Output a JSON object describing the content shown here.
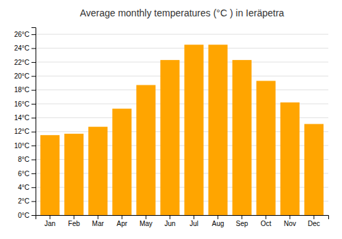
{
  "chart_data": {
    "type": "bar",
    "title": "Average monthly temperatures (°C ) in Ieräpetra",
    "categories": [
      "Jan",
      "Feb",
      "Mar",
      "Apr",
      "May",
      "Jun",
      "Jul",
      "Aug",
      "Sep",
      "Oct",
      "Nov",
      "Dec"
    ],
    "values": [
      11.5,
      11.7,
      12.7,
      15.3,
      18.7,
      22.3,
      24.5,
      24.5,
      22.3,
      19.3,
      16.2,
      13.1
    ],
    "color": "#FFA500",
    "ylim": [
      0,
      27
    ],
    "yticks": [
      {
        "value": 0,
        "label": "0°C"
      },
      {
        "value": 2,
        "label": "2°C"
      },
      {
        "value": 4,
        "label": "4°C"
      },
      {
        "value": 6,
        "label": "6°C"
      },
      {
        "value": 8,
        "label": "8°C"
      },
      {
        "value": 10,
        "label": "10°C"
      },
      {
        "value": 12,
        "label": "12°C"
      },
      {
        "value": 14,
        "label": "14°C"
      },
      {
        "value": 16,
        "label": "16°C"
      },
      {
        "value": 18,
        "label": "18°C"
      },
      {
        "value": 20,
        "label": "20°C"
      },
      {
        "value": 22,
        "label": "22°C"
      },
      {
        "value": 24,
        "label": "24°C"
      },
      {
        "value": 26,
        "label": "26°C"
      }
    ],
    "grid": true
  }
}
